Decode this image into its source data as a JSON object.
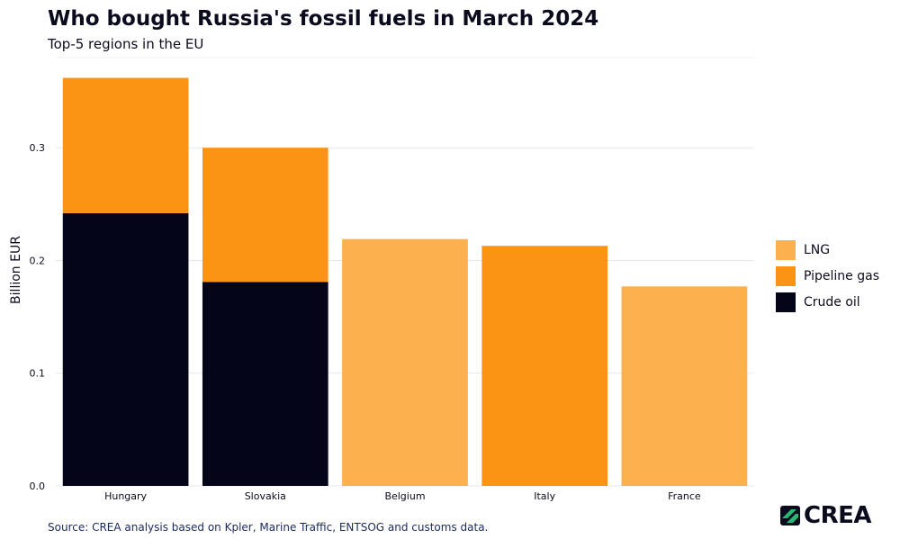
{
  "header": {
    "title": "Who bought Russia's fossil fuels in March 2024",
    "subtitle": "Top-5 regions in the EU"
  },
  "footer": {
    "source": "Source: CREA analysis based on Kpler, Marine Traffic, ENTSOG and customs data.",
    "logo_text": "CREA"
  },
  "chart_data": {
    "type": "bar",
    "stacked": true,
    "title": "Who bought Russia's fossil fuels in March 2024",
    "subtitle": "Top-5 regions in the EU",
    "xlabel": "",
    "ylabel": "Billion EUR",
    "categories": [
      "Hungary",
      "Slovakia",
      "Belgium",
      "Italy",
      "France"
    ],
    "series": [
      {
        "name": "Crude oil",
        "color": "#05051a",
        "values": [
          0.242,
          0.181,
          0,
          0,
          0
        ]
      },
      {
        "name": "Pipeline gas",
        "color": "#fb9414",
        "values": [
          0.12,
          0.119,
          0,
          0.213,
          0
        ]
      },
      {
        "name": "LNG",
        "color": "#fcb04e",
        "values": [
          0,
          0,
          0.219,
          0,
          0.177
        ]
      }
    ],
    "legend_order": [
      "LNG",
      "Pipeline gas",
      "Crude oil"
    ],
    "yticks": [
      0.0,
      0.1,
      0.2,
      0.3
    ],
    "ytick_labels": [
      "0.0",
      "0.1",
      "0.2",
      "0.3"
    ],
    "ylim": [
      0,
      0.38
    ],
    "grid": true,
    "legend_position": "right"
  }
}
